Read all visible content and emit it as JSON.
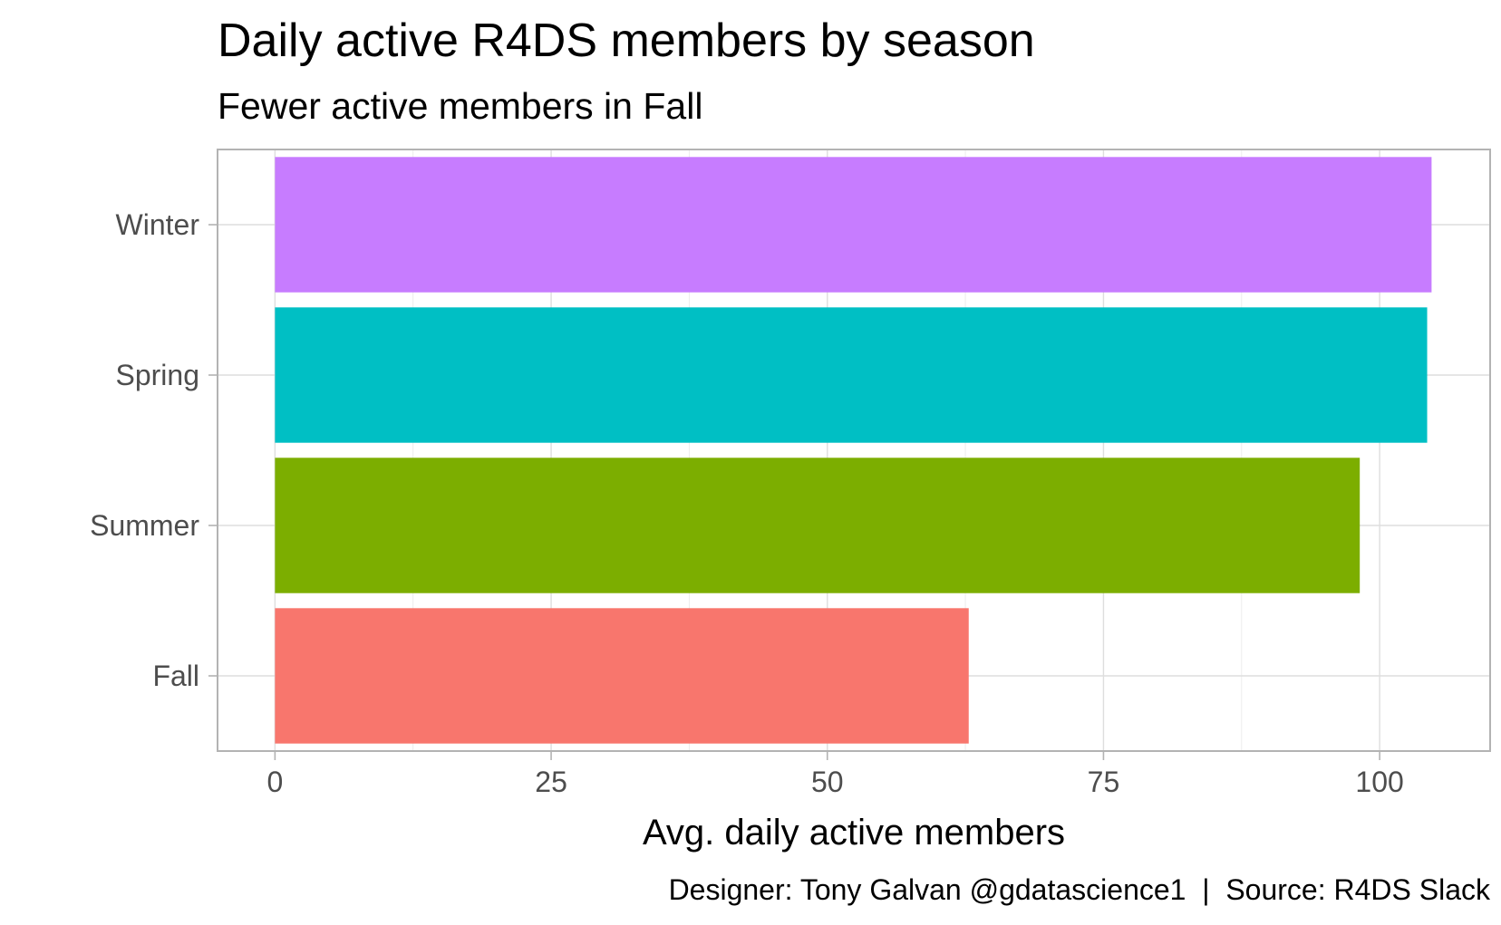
{
  "chart_data": {
    "type": "bar",
    "orientation": "horizontal",
    "title": "Daily active R4DS members by season",
    "subtitle": "Fewer active members in Fall",
    "xlabel": "Avg. daily active members",
    "ylabel": "",
    "caption": "Designer: Tony Galvan @gdatascience1  |  Source: R4DS Slack",
    "categories": [
      "Winter",
      "Spring",
      "Summer",
      "Fall"
    ],
    "values": [
      104.7,
      104.3,
      98.2,
      62.8
    ],
    "colors": [
      "#C77CFF",
      "#00BFC4",
      "#7CAE00",
      "#F8766D"
    ],
    "x_ticks": [
      0,
      25,
      50,
      75,
      100
    ],
    "xlim": [
      -5.2,
      110.0
    ],
    "grid": true,
    "legend": "none"
  }
}
